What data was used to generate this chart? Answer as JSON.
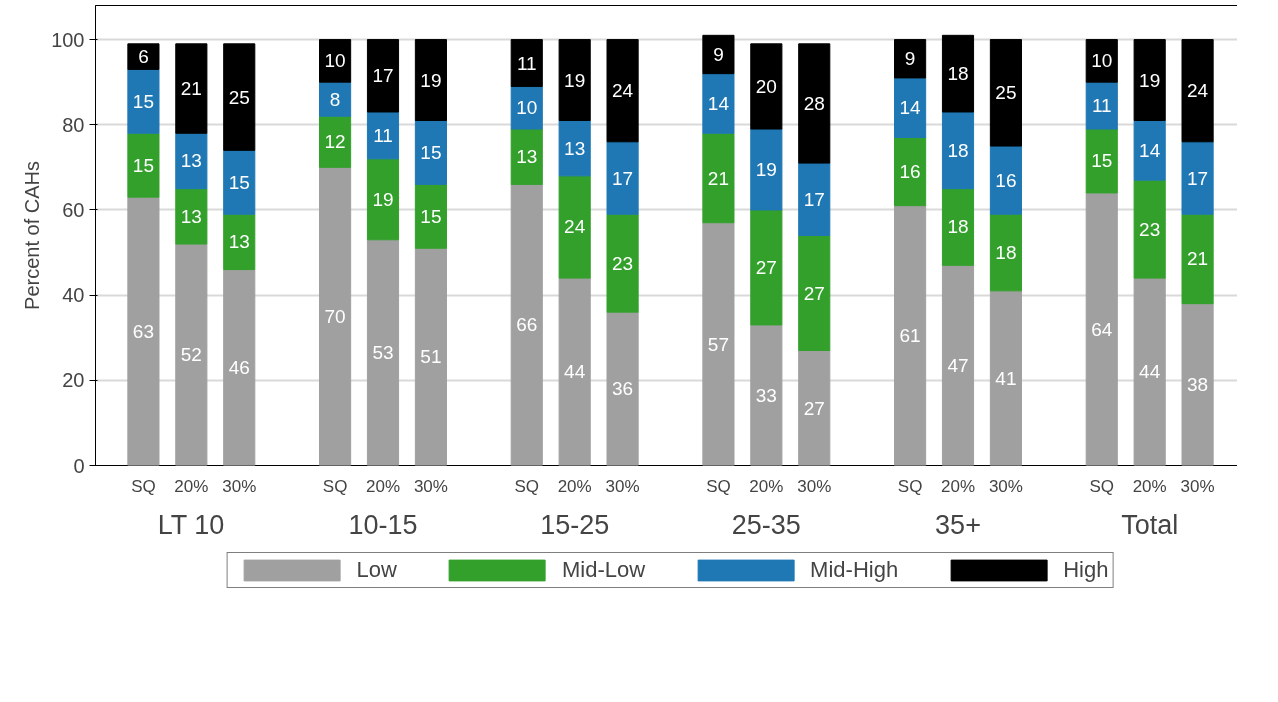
{
  "chart_data": {
    "type": "bar",
    "stacked": true,
    "ylabel": "Percent of CAHs",
    "categories": [
      "SQ",
      "20%",
      "30%",
      "SQ",
      "20%",
      "30%",
      "SQ",
      "20%",
      "30%",
      "SQ",
      "20%",
      "30%",
      "SQ",
      "20%",
      "30%",
      "SQ",
      "20%",
      "30%"
    ],
    "annotations": [
      "LT 10",
      "10-15",
      "15-25",
      "25-35",
      "35+",
      "Total"
    ],
    "series": [
      {
        "name": "Low",
        "color": "#a0a0a0",
        "values": [
          63,
          52,
          46,
          70,
          53,
          51,
          66,
          44,
          36,
          57,
          33,
          27,
          61,
          47,
          41,
          64,
          44,
          38
        ]
      },
      {
        "name": "Mid-Low",
        "color": "#33a02c",
        "values": [
          15,
          13,
          13,
          12,
          19,
          15,
          13,
          24,
          23,
          21,
          27,
          27,
          16,
          18,
          18,
          15,
          23,
          21
        ]
      },
      {
        "name": "Mid-High",
        "color": "#1f78b4",
        "values": [
          15,
          13,
          15,
          8,
          11,
          15,
          10,
          13,
          17,
          14,
          19,
          17,
          14,
          18,
          16,
          11,
          14,
          17
        ]
      },
      {
        "name": "High",
        "color": "#000000",
        "values": [
          6,
          21,
          25,
          10,
          17,
          19,
          11,
          19,
          24,
          9,
          20,
          28,
          9,
          18,
          25,
          10,
          19,
          24
        ]
      }
    ],
    "ylim": [
      0,
      108
    ],
    "yticks": [
      0,
      20,
      40,
      60,
      80,
      100
    ],
    "grid": "y",
    "legend": "bottom",
    "data_labels": true
  }
}
